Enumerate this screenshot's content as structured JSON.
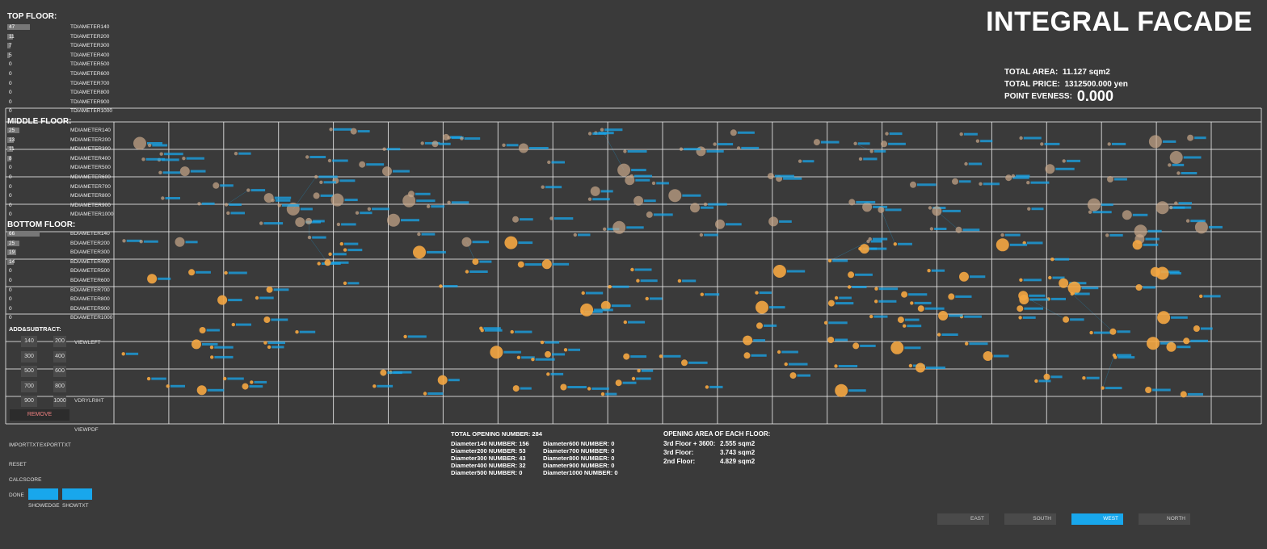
{
  "app_title": "INTEGRAL FACADE",
  "stats": {
    "total_area_label": "TOTAL AREA:",
    "total_area_value": "11.127 sqm2",
    "total_price_label": "TOTAL PRICE:",
    "total_price_value": "1312500.000 yen",
    "point_evenness_label": "POINT EVENESS:",
    "point_evenness_value": "0.000"
  },
  "top_floor": {
    "heading": "TOP FLOOR:",
    "rows": [
      {
        "value": "47",
        "label": "TDIAMETER140",
        "fill": 0.47
      },
      {
        "value": "11",
        "label": "TDIAMETER200",
        "fill": 0.11
      },
      {
        "value": "7",
        "label": "TDIAMETER300",
        "fill": 0.07
      },
      {
        "value": "5",
        "label": "TDIAMETER400",
        "fill": 0.05
      },
      {
        "value": "0",
        "label": "TDIAMETER500",
        "fill": 0
      },
      {
        "value": "0",
        "label": "TDIAMETER600",
        "fill": 0
      },
      {
        "value": "0",
        "label": "TDIAMETER700",
        "fill": 0
      },
      {
        "value": "0",
        "label": "TDIAMETER800",
        "fill": 0
      },
      {
        "value": "0",
        "label": "TDIAMETER900",
        "fill": 0
      },
      {
        "value": "0",
        "label": "TDIAMETER1000",
        "fill": 0
      }
    ]
  },
  "middle_floor": {
    "heading": "MIDDLE FLOOR:",
    "rows": [
      {
        "value": "25",
        "label": "MDIAMETER140",
        "fill": 0.25
      },
      {
        "value": "13",
        "label": "MDIAMETER200",
        "fill": 0.13
      },
      {
        "value": "11",
        "label": "MDIAMETER300",
        "fill": 0.11
      },
      {
        "value": "8",
        "label": "MDIAMETER400",
        "fill": 0.08
      },
      {
        "value": "0",
        "label": "MDIAMETER500",
        "fill": 0
      },
      {
        "value": "0",
        "label": "MDIAMETER600",
        "fill": 0
      },
      {
        "value": "0",
        "label": "MDIAMETER700",
        "fill": 0
      },
      {
        "value": "0",
        "label": "MDIAMETER800",
        "fill": 0
      },
      {
        "value": "0",
        "label": "MDIAMETER900",
        "fill": 0
      },
      {
        "value": "0",
        "label": "MDIAMETER1000",
        "fill": 0
      }
    ]
  },
  "bottom_floor": {
    "heading": "BOTTOM FLOOR:",
    "rows": [
      {
        "value": "66",
        "label": "BDIAMETER140",
        "fill": 0.66
      },
      {
        "value": "25",
        "label": "BDIAMETER200",
        "fill": 0.25
      },
      {
        "value": "19",
        "label": "BDIAMETER300",
        "fill": 0.19
      },
      {
        "value": "14",
        "label": "BDIAMETER400",
        "fill": 0.14
      },
      {
        "value": "0",
        "label": "BDIAMETER500",
        "fill": 0
      },
      {
        "value": "0",
        "label": "BDIAMETER600",
        "fill": 0
      },
      {
        "value": "0",
        "label": "BDIAMETER700",
        "fill": 0
      },
      {
        "value": "0",
        "label": "BDIAMETER800",
        "fill": 0
      },
      {
        "value": "0",
        "label": "BDIAMETER900",
        "fill": 0
      },
      {
        "value": "0",
        "label": "BDIAMETER1000",
        "fill": 0
      }
    ]
  },
  "add_subtract": {
    "heading": "ADD&SUBTRACT:",
    "buttons": [
      "140",
      "200",
      "300",
      "400",
      "500",
      "600",
      "700",
      "800",
      "900",
      "1000"
    ],
    "view_left": "VIEWLEFT",
    "view_right": "VDRYLRIHT",
    "remove": "REMOVE",
    "view_pdf": "VIEWPDF"
  },
  "controls": {
    "import": "IMPORTTXT",
    "export": "EXPORTTXT",
    "reset": "RESET",
    "calcscore": "CALCSCORE",
    "done": "DONE",
    "show_edge": "SHOWEDGE",
    "show_txt": "SHOWTXT"
  },
  "summary": {
    "total_label": "TOTAL OPENING NUMBER: 284",
    "left": [
      "Diameter140 NUMBER:  156",
      "Diameter200 NUMBER:  53",
      "Diameter300 NUMBER:  43",
      "Diameter400 NUMBER:  32",
      "Diameter500 NUMBER:  0"
    ],
    "right": [
      "Diameter600 NUMBER:  0",
      "Diameter700 NUMBER:  0",
      "Diameter800 NUMBER:  0",
      "Diameter900 NUMBER:  0",
      "Diameter1000 NUMBER:  0"
    ]
  },
  "floor_area": {
    "heading": "OPENING AREA OF EACH FLOOR:",
    "rows": [
      {
        "label": "3rd Floor + 3600:",
        "value": "2.555 sqm2"
      },
      {
        "label": "3rd Floor:",
        "value": "3.743 sqm2"
      },
      {
        "label": "2nd Floor:",
        "value": "4.829 sqm2"
      }
    ]
  },
  "directions": [
    {
      "label": "EAST",
      "active": false
    },
    {
      "label": "SOUTH",
      "active": false
    },
    {
      "label": "WEST",
      "active": true
    },
    {
      "label": "NORTH",
      "active": false
    }
  ],
  "colors": {
    "background": "#3a3a3a",
    "accent_blue": "#18a7ec",
    "point_orange": "#f5a742",
    "grid_line": "#e6e6e6"
  }
}
